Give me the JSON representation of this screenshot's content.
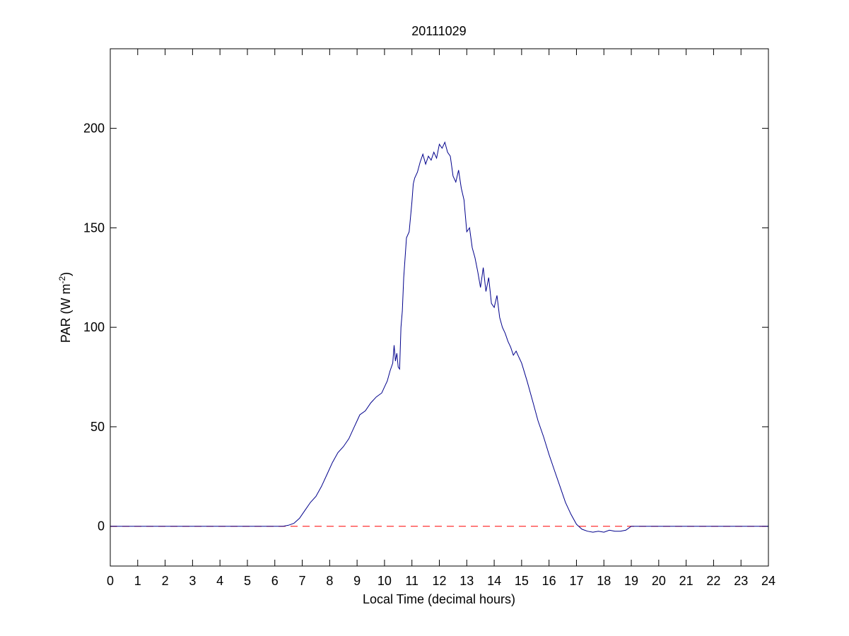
{
  "chart_data": {
    "type": "line",
    "title": "20111029",
    "xlabel": "Local Time (decimal hours)",
    "ylabel": {
      "base": "PAR (W m",
      "sup": "-2",
      "end": ")"
    },
    "xlim": [
      0,
      24
    ],
    "ylim": [
      -20,
      240
    ],
    "xticks": [
      0,
      1,
      2,
      3,
      4,
      5,
      6,
      7,
      8,
      9,
      10,
      11,
      12,
      13,
      14,
      15,
      16,
      17,
      18,
      19,
      20,
      21,
      22,
      23,
      24
    ],
    "yticks": [
      0,
      50,
      100,
      150,
      200
    ],
    "grid": false,
    "colors": {
      "series": "#00008b",
      "reference": "#ff0000"
    },
    "series": [
      {
        "x": [
          0,
          6.3,
          6.5,
          6.7,
          6.9,
          7.1,
          7.3,
          7.5,
          7.7,
          7.9,
          8.1,
          8.3,
          8.5,
          8.7,
          8.9,
          9.0,
          9.1,
          9.3,
          9.5,
          9.7,
          9.9,
          10.0,
          10.1,
          10.2,
          10.3,
          10.35,
          10.4,
          10.45,
          10.5,
          10.55,
          10.6,
          10.65,
          10.7,
          10.8,
          10.9,
          11.0,
          11.05,
          11.1,
          11.2,
          11.3,
          11.4,
          11.5,
          11.6,
          11.7,
          11.8,
          11.9,
          12.0,
          12.1,
          12.2,
          12.3,
          12.4,
          12.5,
          12.6,
          12.7,
          12.8,
          12.9,
          13.0,
          13.1,
          13.2,
          13.3,
          13.4,
          13.5,
          13.6,
          13.7,
          13.8,
          13.9,
          14.0,
          14.1,
          14.2,
          14.3,
          14.4,
          14.5,
          14.6,
          14.7,
          14.8,
          14.9,
          15.0,
          15.2,
          15.4,
          15.6,
          15.8,
          16.0,
          16.2,
          16.4,
          16.6,
          16.8,
          17.0,
          17.2,
          17.4,
          17.6,
          17.8,
          18.0,
          18.2,
          18.4,
          18.6,
          18.8,
          19.0,
          24
        ],
        "y": [
          0,
          0,
          0.5,
          1.5,
          4,
          8,
          12,
          15,
          20,
          26,
          32,
          37,
          40,
          44,
          50,
          53,
          56,
          58,
          62,
          65,
          67,
          70,
          73,
          78,
          82,
          91,
          83,
          87,
          80,
          79,
          100,
          108,
          125,
          145,
          148,
          163,
          172,
          175,
          178,
          183,
          187,
          182,
          186,
          184,
          188,
          185,
          192,
          190,
          193,
          188,
          186,
          176,
          173,
          179,
          170,
          164,
          148,
          150,
          140,
          135,
          128,
          120,
          130,
          118,
          125,
          112,
          110,
          116,
          105,
          100,
          97,
          93,
          90,
          86,
          88,
          85,
          82,
          73,
          63,
          53,
          45,
          36,
          28,
          20,
          12,
          6,
          1,
          -1.5,
          -2.5,
          -3,
          -2.5,
          -3,
          -2,
          -2.5,
          -2.5,
          -2,
          0,
          0
        ]
      }
    ],
    "reference_line": {
      "y": 0,
      "style": "dashed"
    }
  }
}
